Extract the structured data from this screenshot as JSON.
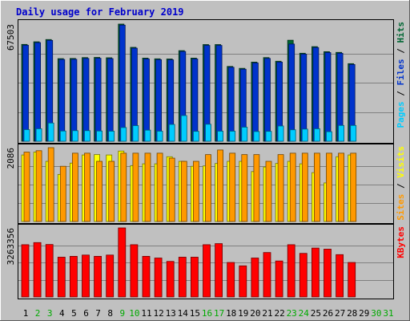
{
  "chart_data": [
    {
      "type": "bar",
      "panel": "hits-files-pages",
      "title": "Daily usage for February 2019",
      "y_axis_label": "67503",
      "ylim": [
        0,
        67503
      ],
      "categories": [
        "1",
        "2",
        "3",
        "4",
        "5",
        "6",
        "7",
        "8",
        "9",
        "10",
        "11",
        "12",
        "13",
        "14",
        "15",
        "16",
        "17",
        "18",
        "19",
        "20",
        "21",
        "22",
        "23",
        "24",
        "25",
        "26",
        "27",
        "28"
      ],
      "legend": [
        "Pages",
        "Files",
        "Hits"
      ],
      "legend_separator": " / ",
      "series": [
        {
          "name": "Hits",
          "color": "#006633",
          "values": [
            55800,
            57300,
            58600,
            47600,
            47700,
            48200,
            48300,
            48100,
            67503,
            54100,
            47900,
            47500,
            47400,
            52200,
            47900,
            55700,
            55700,
            43100,
            42000,
            45600,
            48200,
            46100,
            58200,
            50700,
            54500,
            51600,
            51200,
            44700
          ]
        },
        {
          "name": "Files",
          "color": "#0033cc",
          "values": [
            55300,
            56800,
            58100,
            47100,
            47200,
            47700,
            47800,
            47600,
            66900,
            53600,
            47400,
            47000,
            46900,
            51700,
            47400,
            55200,
            55200,
            42600,
            41500,
            45100,
            47700,
            45600,
            56000,
            50200,
            54000,
            51100,
            50700,
            44200
          ]
        },
        {
          "name": "Pages",
          "color": "#00ccff",
          "values": [
            6700,
            7200,
            10500,
            5900,
            6100,
            6100,
            5900,
            5800,
            7900,
            9000,
            6400,
            5800,
            9700,
            14800,
            5700,
            9800,
            5800,
            5800,
            8100,
            5600,
            5700,
            8800,
            6600,
            7000,
            7200,
            5500,
            9100,
            9100
          ]
        }
      ]
    },
    {
      "type": "bar",
      "panel": "visits-sites",
      "y_axis_label": "2086",
      "ylim": [
        0,
        2086
      ],
      "categories": [
        "1",
        "2",
        "3",
        "4",
        "5",
        "6",
        "7",
        "8",
        "9",
        "10",
        "11",
        "12",
        "13",
        "14",
        "15",
        "16",
        "17",
        "18",
        "19",
        "20",
        "21",
        "22",
        "23",
        "24",
        "25",
        "26",
        "27",
        "28"
      ],
      "legend": [
        "Sites",
        "Visits"
      ],
      "legend_separator": " / ",
      "series": [
        {
          "name": "Visits",
          "color": "#ffff00",
          "values": [
            1880,
            1960,
            1700,
            1330,
            1650,
            1880,
            1890,
            1880,
            1990,
            1580,
            1630,
            1630,
            1830,
            1700,
            1560,
            1570,
            1640,
            1700,
            1700,
            1410,
            1540,
            1640,
            1700,
            1630,
            1380,
            1090,
            1830,
            1880
          ]
        },
        {
          "name": "Sites",
          "color": "#ff9900",
          "values": [
            1960,
            2000,
            2086,
            1560,
            1930,
            1930,
            1700,
            1700,
            1930,
            1930,
            1930,
            1930,
            1790,
            1700,
            1700,
            1890,
            2020,
            1930,
            1890,
            1890,
            1700,
            1890,
            1930,
            1930,
            1930,
            1930,
            1930,
            1930
          ]
        }
      ]
    },
    {
      "type": "bar",
      "panel": "kbytes",
      "y_axis_label": "3263356",
      "ylim": [
        0,
        3263356
      ],
      "categories": [
        "1",
        "2",
        "3",
        "4",
        "5",
        "6",
        "7",
        "8",
        "9",
        "10",
        "11",
        "12",
        "13",
        "14",
        "15",
        "16",
        "17",
        "18",
        "19",
        "20",
        "21",
        "22",
        "23",
        "24",
        "25",
        "26",
        "27",
        "28"
      ],
      "legend": [
        "KBytes"
      ],
      "series": [
        {
          "name": "KBytes",
          "color": "#ff0000",
          "values": [
            2470000,
            2570000,
            2480000,
            1880000,
            1920000,
            1980000,
            1920000,
            1980000,
            3263356,
            2470000,
            1920000,
            1840000,
            1680000,
            1880000,
            1880000,
            2470000,
            2520000,
            1630000,
            1470000,
            1840000,
            2100000,
            1700000,
            2470000,
            2060000,
            2310000,
            2260000,
            2000000,
            1630000
          ]
        }
      ]
    }
  ],
  "x_axis": {
    "days": [
      "1",
      "2",
      "3",
      "4",
      "5",
      "6",
      "7",
      "8",
      "9",
      "10",
      "11",
      "12",
      "13",
      "14",
      "15",
      "16",
      "17",
      "18",
      "19",
      "20",
      "21",
      "22",
      "23",
      "24",
      "25",
      "26",
      "27",
      "28",
      "29",
      "30",
      "31"
    ],
    "weekend_days": [
      "2",
      "3",
      "9",
      "10",
      "16",
      "17",
      "23",
      "24",
      "30",
      "31"
    ]
  },
  "colors": {
    "background": "#c0c0c0",
    "grid": "#808080",
    "title": "#0000cc",
    "weekday": "#000000",
    "weekend": "#00aa00",
    "legend_sep": "#000000"
  }
}
